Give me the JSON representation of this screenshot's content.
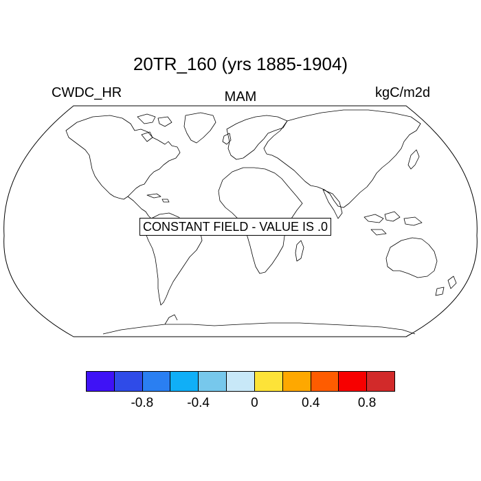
{
  "title": "20TR_160 (yrs 1885-1904)",
  "left_string": "CWDC_HR",
  "center_string": "MAM",
  "right_string": "kgC/m2d",
  "message": "CONSTANT FIELD - VALUE IS .0",
  "colorbar": {
    "colors": [
      "#3f12f6",
      "#2f4be8",
      "#2a7ff2",
      "#10aff7",
      "#77c8ec",
      "#c8e8f8",
      "#fde338",
      "#fea800",
      "#fe5c00",
      "#f70000",
      "#d22a2a"
    ],
    "labels": [
      "-0.8",
      "-0.4",
      "0",
      "0.4",
      "0.8"
    ]
  },
  "chart_data": {
    "type": "heatmap",
    "title": "20TR_160 (yrs 1885-1904)",
    "variable": "CWDC_HR",
    "season": "MAM",
    "units": "kgC/m2d",
    "value": 0.0,
    "levels": [
      -1.0,
      -0.8,
      -0.6,
      -0.4,
      -0.2,
      0,
      0.2,
      0.4,
      0.6,
      0.8,
      1.0
    ]
  }
}
